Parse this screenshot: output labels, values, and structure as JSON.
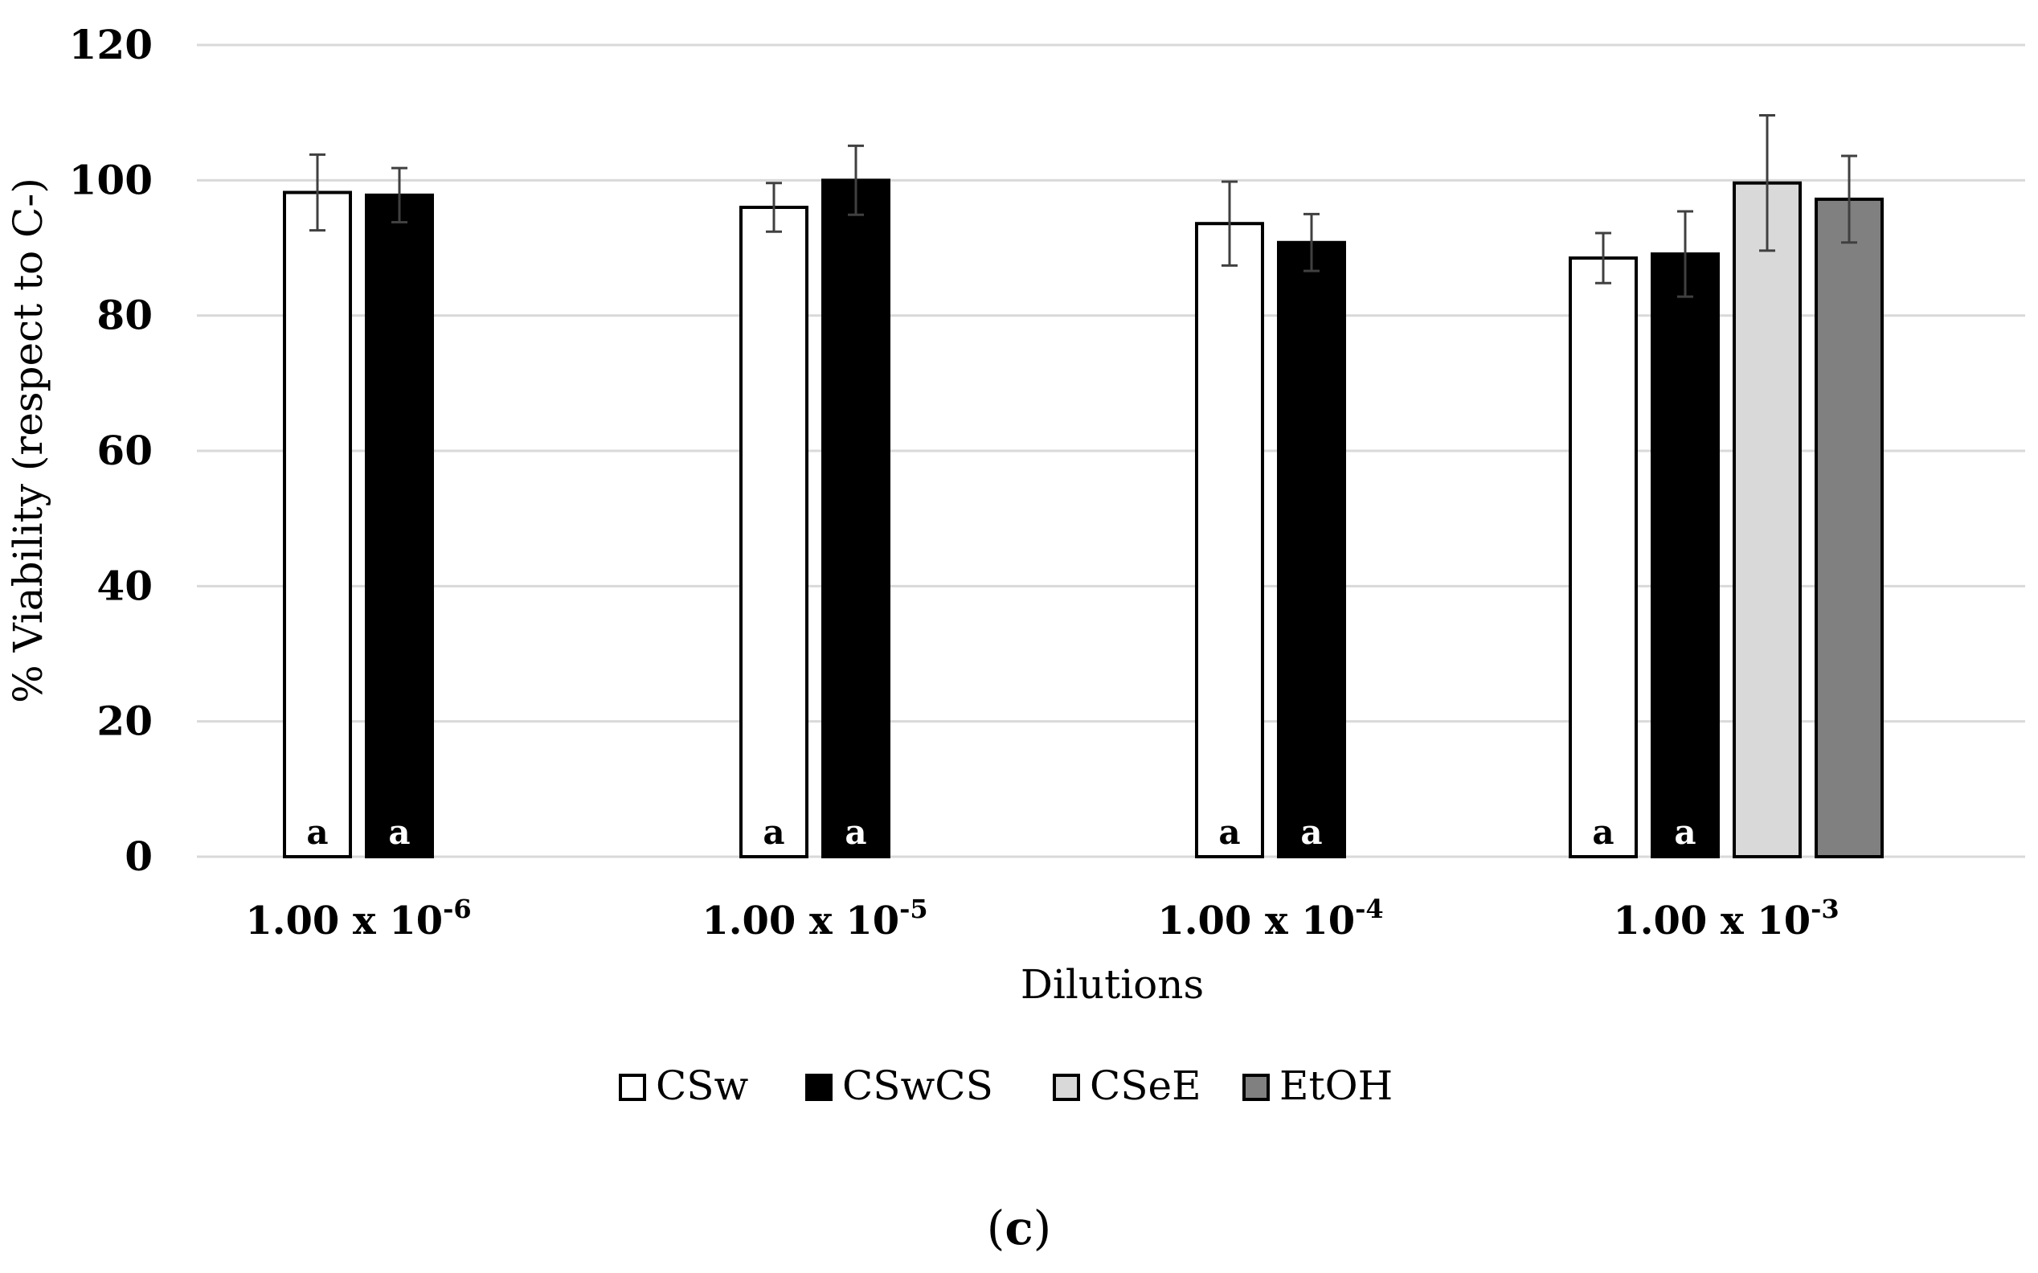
{
  "chart_data": {
    "type": "bar",
    "title": "",
    "panel_label": "c",
    "xlabel": "Dilutions",
    "ylabel": "% Viability (respect to C-)",
    "ylim": [
      0,
      120
    ],
    "yticks": [
      0,
      20,
      40,
      60,
      80,
      100,
      120
    ],
    "grid": true,
    "legend_position": "bottom",
    "categories": [
      {
        "base": "1.00 x 10",
        "exponent": "-6"
      },
      {
        "base": "1.00 x 10",
        "exponent": "-5"
      },
      {
        "base": "1.00 x 10",
        "exponent": "-4"
      },
      {
        "base": "1.00 x 10",
        "exponent": "-3"
      }
    ],
    "series": [
      {
        "name": "CSw",
        "color": "#ffffff",
        "edge": "#000000",
        "values": [
          98.2,
          96.0,
          93.6,
          88.5
        ],
        "errors": [
          5.6,
          3.6,
          6.2,
          3.7
        ],
        "annotations": [
          "a",
          "a",
          "a",
          "a"
        ]
      },
      {
        "name": "CSwCS",
        "color": "#000000",
        "edge": "#000000",
        "values": [
          97.8,
          100.0,
          90.8,
          89.1
        ],
        "errors": [
          4.0,
          5.1,
          4.2,
          6.3
        ],
        "annotations": [
          "a",
          "a",
          "a",
          "a"
        ]
      },
      {
        "name": "CSeE",
        "color": "#d9d9d9",
        "edge": "#000000",
        "values": [
          null,
          null,
          null,
          99.6
        ],
        "errors": [
          null,
          null,
          null,
          10.0
        ],
        "annotations": [
          null,
          null,
          null,
          null
        ]
      },
      {
        "name": "EtOH",
        "color": "#808080",
        "edge": "#000000",
        "values": [
          null,
          null,
          null,
          97.2
        ],
        "errors": [
          null,
          null,
          null,
          6.4
        ],
        "annotations": [
          null,
          null,
          null,
          null
        ]
      }
    ]
  }
}
